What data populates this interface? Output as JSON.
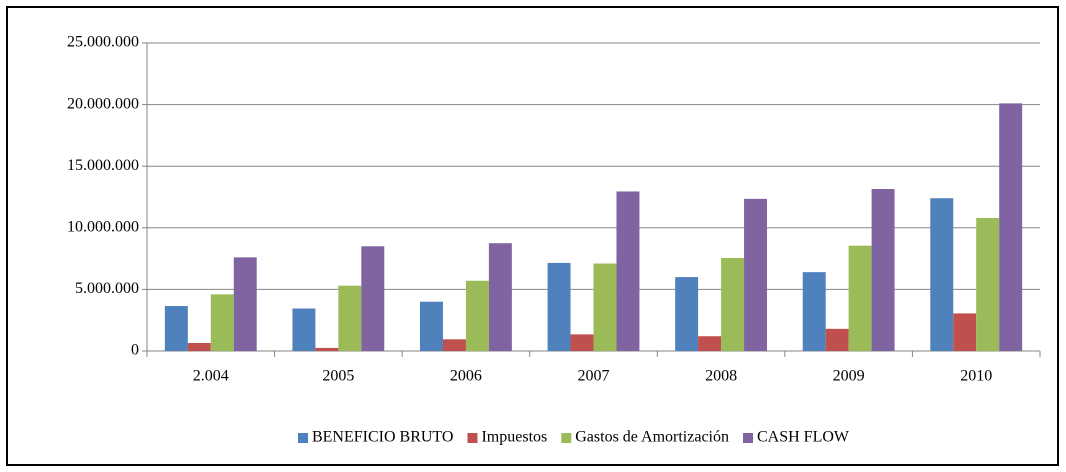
{
  "chart_data": {
    "type": "bar",
    "categories": [
      "2.004",
      "2005",
      "2006",
      "2007",
      "2008",
      "2009",
      "2010"
    ],
    "series": [
      {
        "name": "BENEFICIO BRUTO",
        "color": "#4f81bd",
        "values": [
          3650000,
          3450000,
          4000000,
          7150000,
          6000000,
          6400000,
          12400000
        ]
      },
      {
        "name": "Impuestos",
        "color": "#c0504d",
        "values": [
          650000,
          250000,
          950000,
          1350000,
          1200000,
          1800000,
          3050000
        ]
      },
      {
        "name": "Gastos de Amortización",
        "color": "#9bbb59",
        "values": [
          4600000,
          5300000,
          5700000,
          7100000,
          7550000,
          8550000,
          10800000
        ]
      },
      {
        "name": "CASH FLOW",
        "color": "#8064a2",
        "values": [
          7600000,
          8500000,
          8750000,
          12950000,
          12350000,
          13150000,
          20100000
        ]
      }
    ],
    "ylim": [
      0,
      25000000
    ],
    "yticks": [
      0,
      {
        "value": 5000000,
        "label": "5.000.000"
      },
      {
        "value": 10000000,
        "label": "10.000.000"
      },
      {
        "value": 15000000,
        "label": "15.000.000"
      },
      {
        "value": 20000000,
        "label": "20.000.000"
      },
      {
        "value": 25000000,
        "label": "25.000.000"
      }
    ],
    "grid": true,
    "legend": "bottom"
  }
}
